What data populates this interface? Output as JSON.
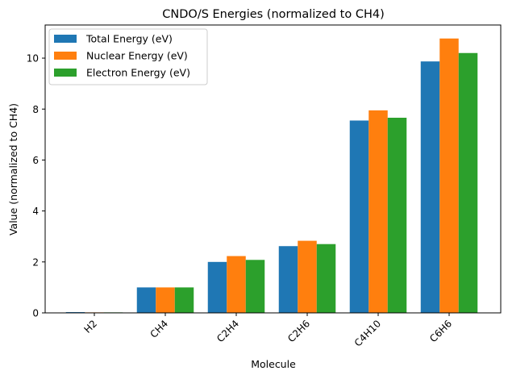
{
  "chart_data": {
    "type": "bar",
    "title": "CNDO/S Energies (normalized to CH4)",
    "xlabel": "Molecule",
    "ylabel": "Value (normalized to CH4)",
    "categories": [
      "H2",
      "CH4",
      "C2H4",
      "C2H6",
      "C4H10",
      "C6H6"
    ],
    "ylim": [
      0,
      11.3
    ],
    "yticks": [
      0,
      2,
      4,
      6,
      8,
      10
    ],
    "grid": false,
    "legend_position": "top-left",
    "series": [
      {
        "name": "Total Energy (eV)",
        "color": "#1f77b4",
        "values": [
          0.03,
          1.0,
          2.0,
          2.62,
          7.55,
          9.87
        ]
      },
      {
        "name": "Nuclear Energy (eV)",
        "color": "#ff7f0e",
        "values": [
          0.02,
          1.0,
          2.23,
          2.83,
          7.95,
          10.77
        ]
      },
      {
        "name": "Electron Energy (eV)",
        "color": "#2ca02c",
        "values": [
          0.02,
          1.0,
          2.08,
          2.7,
          7.66,
          10.2
        ]
      }
    ]
  }
}
